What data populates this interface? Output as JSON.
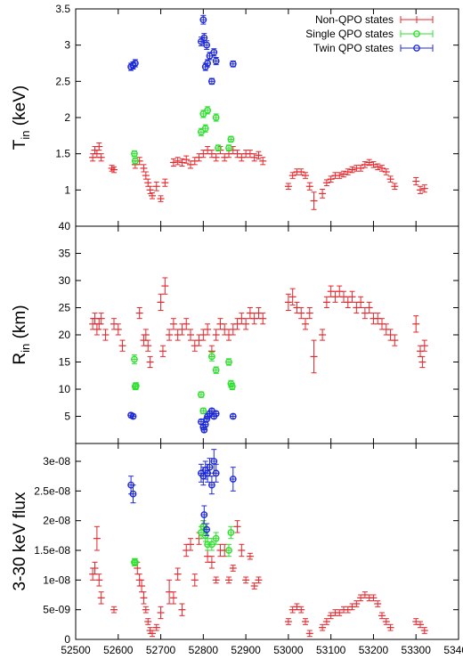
{
  "chart_data": [
    {
      "type": "scatter",
      "ylabel": "T_in (keV)",
      "ylabel_main": "T",
      "ylabel_sub": "in",
      "ylabel_unit": " (keV)",
      "ylim": [
        0.5,
        3.5
      ],
      "yticks": [
        1,
        1.5,
        2,
        2.5,
        3,
        3.5
      ],
      "ytick_labels": [
        "1",
        "1.5",
        "2",
        "2.5",
        "3",
        "3.5"
      ],
      "legend": {
        "placement": "top-right",
        "entries": [
          "Non-QPO states",
          "Single QPO states",
          "Twin QPO states"
        ]
      },
      "series": [
        {
          "name": "Non-QPO states",
          "color": "#e8262c",
          "marker": "plus",
          "x": [
            52540,
            52545,
            52550,
            52555,
            52560,
            52585,
            52590,
            52640,
            52650,
            52660,
            52665,
            52670,
            52675,
            52680,
            52690,
            52700,
            52710,
            52730,
            52740,
            52750,
            52760,
            52770,
            52780,
            52790,
            52800,
            52810,
            52820,
            52830,
            52840,
            52850,
            52860,
            52870,
            52880,
            52890,
            52900,
            52910,
            52920,
            52930,
            52940,
            53000,
            53010,
            53020,
            53030,
            53040,
            53050,
            53060,
            53080,
            53090,
            53100,
            53110,
            53120,
            53130,
            53140,
            53150,
            53160,
            53170,
            53180,
            53190,
            53200,
            53210,
            53220,
            53230,
            53240,
            53250,
            53300,
            53310,
            53320
          ],
          "y": [
            1.45,
            1.55,
            1.5,
            1.6,
            1.45,
            1.3,
            1.28,
            1.35,
            1.4,
            1.3,
            1.2,
            1.1,
            1.0,
            0.92,
            1.05,
            0.88,
            1.1,
            1.38,
            1.4,
            1.38,
            1.42,
            1.35,
            1.4,
            1.45,
            1.5,
            1.55,
            1.5,
            1.45,
            1.55,
            1.45,
            1.5,
            1.55,
            1.5,
            1.45,
            1.5,
            1.5,
            1.45,
            1.48,
            1.4,
            1.05,
            1.2,
            1.25,
            1.25,
            1.2,
            1.05,
            0.85,
            0.95,
            1.1,
            1.15,
            1.2,
            1.2,
            1.22,
            1.25,
            1.28,
            1.3,
            1.3,
            1.35,
            1.38,
            1.35,
            1.32,
            1.3,
            1.25,
            1.15,
            1.05,
            1.12,
            1.0,
            1.02
          ],
          "err": [
            0.05,
            0.05,
            0.05,
            0.05,
            0.05,
            0.04,
            0.04,
            0.05,
            0.05,
            0.05,
            0.05,
            0.05,
            0.05,
            0.04,
            0.06,
            0.04,
            0.05,
            0.05,
            0.05,
            0.05,
            0.05,
            0.05,
            0.05,
            0.05,
            0.05,
            0.05,
            0.05,
            0.05,
            0.05,
            0.05,
            0.05,
            0.05,
            0.05,
            0.05,
            0.05,
            0.05,
            0.05,
            0.05,
            0.05,
            0.04,
            0.04,
            0.04,
            0.04,
            0.04,
            0.05,
            0.12,
            0.06,
            0.04,
            0.04,
            0.04,
            0.04,
            0.04,
            0.04,
            0.04,
            0.04,
            0.04,
            0.04,
            0.04,
            0.04,
            0.04,
            0.04,
            0.04,
            0.04,
            0.04,
            0.05,
            0.05,
            0.05
          ]
        },
        {
          "name": "Single QPO states",
          "color": "#2fe02f",
          "marker": "circle",
          "x": [
            52638,
            52640,
            52795,
            52800,
            52805,
            52810,
            52830,
            52835,
            52860,
            52865
          ],
          "y": [
            1.5,
            1.4,
            1.8,
            2.05,
            1.85,
            2.1,
            2.0,
            1.58,
            1.58,
            1.7
          ],
          "err": [
            0.04,
            0.04,
            0.05,
            0.05,
            0.05,
            0.05,
            0.05,
            0.04,
            0.04,
            0.04
          ]
        },
        {
          "name": "Twin QPO states",
          "color": "#1f2bd9",
          "marker": "circle",
          "x": [
            52630,
            52635,
            52640,
            52795,
            52800,
            52802,
            52805,
            52808,
            52810,
            52815,
            52820,
            52825,
            52830,
            52870
          ],
          "y": [
            2.7,
            2.72,
            2.75,
            3.05,
            3.35,
            3.1,
            2.7,
            3.0,
            2.75,
            2.85,
            2.5,
            2.9,
            2.78,
            2.74
          ],
          "err": [
            0.05,
            0.05,
            0.05,
            0.06,
            0.06,
            0.06,
            0.05,
            0.06,
            0.05,
            0.05,
            0.04,
            0.05,
            0.05,
            0.04
          ]
        }
      ]
    },
    {
      "type": "scatter",
      "ylabel": "R_in (km)",
      "ylabel_main": "R",
      "ylabel_sub": "in",
      "ylabel_unit": " (km)",
      "ylim": [
        0,
        40
      ],
      "yticks": [
        5,
        10,
        15,
        20,
        25,
        30,
        35,
        40
      ],
      "ytick_labels": [
        "5",
        "10",
        "15",
        "20",
        "25",
        "30",
        "35",
        "40"
      ],
      "series": [
        {
          "name": "Non-QPO states",
          "color": "#e8262c",
          "marker": "plus",
          "x": [
            52540,
            52545,
            52550,
            52555,
            52560,
            52570,
            52590,
            52600,
            52610,
            52650,
            52660,
            52665,
            52670,
            52675,
            52700,
            52705,
            52710,
            52720,
            52730,
            52740,
            52750,
            52760,
            52770,
            52780,
            52790,
            52800,
            52810,
            52820,
            52830,
            52840,
            52850,
            52860,
            52870,
            52880,
            52890,
            52900,
            52910,
            52920,
            52930,
            52940,
            53000,
            53010,
            53020,
            53030,
            53040,
            53050,
            53060,
            53080,
            53090,
            53100,
            53110,
            53120,
            53130,
            53140,
            53150,
            53160,
            53170,
            53180,
            53190,
            53200,
            53210,
            53220,
            53230,
            53240,
            53250,
            53300,
            53310,
            53315,
            53320
          ],
          "y": [
            22,
            23,
            21,
            22,
            23,
            20,
            22,
            21,
            18,
            24,
            19,
            20,
            18,
            15,
            26,
            17,
            29,
            20,
            22,
            20,
            21,
            22,
            20,
            18,
            19,
            20,
            21,
            17,
            20,
            22,
            21,
            20,
            21,
            22,
            23,
            22,
            24,
            23,
            24,
            23,
            26,
            27,
            25,
            24,
            22,
            24,
            16,
            20,
            26,
            28,
            27,
            28,
            27,
            26,
            27,
            25,
            26,
            24,
            25,
            23,
            23,
            22,
            21,
            20,
            19,
            22,
            17,
            15,
            18
          ],
          "err": [
            1.0,
            1.0,
            1.0,
            1.0,
            1.0,
            1.0,
            1.0,
            1.0,
            1.0,
            1.0,
            1.0,
            1.0,
            1.0,
            1.0,
            1.5,
            1.0,
            1.5,
            1.0,
            1.0,
            1.0,
            1.0,
            1.0,
            1.0,
            1.0,
            1.0,
            1.0,
            1.0,
            1.0,
            1.0,
            1.0,
            1.0,
            1.0,
            1.0,
            1.0,
            1.0,
            1.0,
            1.0,
            1.0,
            1.0,
            1.0,
            1.5,
            1.5,
            1.0,
            1.0,
            1.0,
            1.0,
            3.0,
            1.0,
            1.0,
            1.0,
            1.0,
            1.0,
            1.0,
            1.0,
            1.0,
            1.0,
            1.0,
            1.0,
            1.0,
            1.0,
            1.0,
            1.0,
            1.0,
            1.0,
            1.0,
            1.5,
            1.0,
            1.0,
            1.0
          ]
        },
        {
          "name": "Single QPO states",
          "color": "#2fe02f",
          "marker": "circle",
          "x": [
            52638,
            52640,
            52642,
            52795,
            52800,
            52820,
            52830,
            52860,
            52865,
            52868
          ],
          "y": [
            15.5,
            10.5,
            10.6,
            9.0,
            6.0,
            16.0,
            13.5,
            15.0,
            11.0,
            10.5
          ],
          "err": [
            0.8,
            0.6,
            0.6,
            0.5,
            0.5,
            0.8,
            0.6,
            0.6,
            0.6,
            0.6
          ]
        },
        {
          "name": "Twin QPO states",
          "color": "#1f2bd9",
          "marker": "circle",
          "x": [
            52630,
            52635,
            52795,
            52800,
            52802,
            52805,
            52808,
            52810,
            52815,
            52820,
            52825,
            52830,
            52870
          ],
          "y": [
            5.2,
            5.0,
            4.0,
            3.0,
            2.5,
            3.5,
            4.5,
            5.0,
            5.5,
            6.0,
            5.0,
            5.5,
            5.0
          ],
          "err": [
            0.4,
            0.4,
            0.4,
            0.4,
            0.4,
            0.4,
            0.4,
            0.4,
            0.4,
            0.4,
            0.4,
            0.4,
            0.4
          ]
        }
      ]
    },
    {
      "type": "scatter",
      "ylabel": "3-30 keV flux",
      "ylim": [
        0,
        3.3e-08
      ],
      "yticks": [
        0,
        5e-09,
        1e-08,
        1.5e-08,
        2e-08,
        2.5e-08,
        3e-08
      ],
      "ytick_labels": [
        "0",
        "5e-09",
        "1e-08",
        "1.5e-08",
        "2e-08",
        "2.5e-08",
        "3e-08"
      ],
      "xlim": [
        52500,
        53400
      ],
      "xticks": [
        52500,
        52600,
        52700,
        52800,
        52900,
        53000,
        53100,
        53200,
        53300,
        53400
      ],
      "xtick_labels": [
        "52500",
        "52600",
        "52700",
        "52800",
        "52900",
        "53000",
        "53100",
        "53200",
        "53300",
        "53400"
      ],
      "series": [
        {
          "name": "Non-QPO states",
          "color": "#e8262c",
          "marker": "plus",
          "x": [
            52540,
            52545,
            52550,
            52555,
            52560,
            52590,
            52645,
            52650,
            52655,
            52660,
            52665,
            52670,
            52675,
            52680,
            52690,
            52700,
            52720,
            52730,
            52740,
            52750,
            52760,
            52770,
            52780,
            52790,
            52800,
            52810,
            52820,
            52830,
            52840,
            52850,
            52860,
            52870,
            52880,
            52890,
            52900,
            52910,
            52920,
            52930,
            53000,
            53010,
            53020,
            53030,
            53040,
            53050,
            53080,
            53090,
            53100,
            53110,
            53120,
            53130,
            53140,
            53150,
            53160,
            53170,
            53180,
            53190,
            53200,
            53210,
            53220,
            53230,
            53240,
            53300,
            53310,
            53320
          ],
          "y": [
            1.1e-08,
            1.2e-08,
            1.7e-08,
            1e-08,
            7e-09,
            5e-09,
            1.2e-08,
            1e-08,
            9e-09,
            7e-09,
            5e-09,
            3e-09,
            1.5e-09,
            1e-09,
            2e-09,
            4.5e-09,
            8e-09,
            7e-09,
            1.1e-08,
            5e-09,
            1.5e-08,
            1.6e-08,
            1e-08,
            1.7e-08,
            1.9e-08,
            1.4e-08,
            1.3e-08,
            1e-08,
            1.5e-08,
            1.5e-08,
            1e-08,
            1.2e-08,
            1.9e-08,
            1.5e-08,
            1e-08,
            1.4e-08,
            9e-09,
            1e-08,
            3e-09,
            5e-09,
            5.5e-09,
            5e-09,
            3e-09,
            1e-09,
            2e-09,
            3e-09,
            4e-09,
            4.5e-09,
            4.5e-09,
            5e-09,
            5e-09,
            5.5e-09,
            6e-09,
            7e-09,
            7.5e-09,
            7e-09,
            7e-09,
            6e-09,
            4e-09,
            3e-09,
            2e-09,
            3e-09,
            2.5e-09,
            1.5e-09
          ],
          "err": [
            1e-09,
            1e-09,
            2e-09,
            1e-09,
            1e-09,
            5e-10,
            1e-09,
            1e-09,
            1e-09,
            1e-09,
            5e-10,
            5e-10,
            5e-10,
            5e-10,
            5e-10,
            1e-09,
            2e-09,
            1e-09,
            1e-09,
            1e-09,
            1e-09,
            1e-09,
            1e-09,
            1e-09,
            1e-09,
            1e-09,
            1e-09,
            5e-10,
            1e-09,
            1e-09,
            5e-10,
            5e-10,
            1e-09,
            1e-09,
            5e-10,
            5e-10,
            5e-10,
            5e-10,
            5e-10,
            5e-10,
            5e-10,
            5e-10,
            5e-10,
            5e-10,
            5e-10,
            5e-10,
            5e-10,
            5e-10,
            5e-10,
            5e-10,
            5e-10,
            5e-10,
            5e-10,
            5e-10,
            5e-10,
            5e-10,
            5e-10,
            5e-10,
            5e-10,
            5e-10,
            5e-10,
            5e-10,
            5e-10,
            5e-10
          ]
        },
        {
          "name": "Single QPO states",
          "color": "#2fe02f",
          "marker": "circle",
          "x": [
            52638,
            52640,
            52795,
            52800,
            52805,
            52810,
            52820,
            52830,
            52860,
            52865
          ],
          "y": [
            1.3e-08,
            1.3e-08,
            1.8e-08,
            1.9e-08,
            1.75e-08,
            1.6e-08,
            1.6e-08,
            1.7e-08,
            1.5e-08,
            1.8e-08
          ],
          "err": [
            6e-10,
            6e-10,
            1e-09,
            1e-09,
            1e-09,
            1e-09,
            1e-09,
            1e-09,
            1e-09,
            1e-09
          ]
        },
        {
          "name": "Twin QPO states",
          "color": "#1f2bd9",
          "marker": "circle",
          "x": [
            52630,
            52635,
            52795,
            52800,
            52802,
            52805,
            52808,
            52810,
            52815,
            52820,
            52825,
            52830,
            52870
          ],
          "y": [
            2.6e-08,
            2.45e-08,
            2.8e-08,
            2.75e-08,
            2.1e-08,
            2.85e-08,
            1.85e-08,
            2.8e-08,
            2.9e-08,
            2.6e-08,
            3e-08,
            2.8e-08,
            2.7e-08
          ],
          "err": [
            1.5e-09,
            1.5e-09,
            1.5e-09,
            1.5e-09,
            1.5e-09,
            1.5e-09,
            1e-09,
            1.5e-09,
            1.5e-09,
            1.5e-09,
            2e-09,
            1.5e-09,
            2e-09
          ]
        }
      ]
    }
  ]
}
